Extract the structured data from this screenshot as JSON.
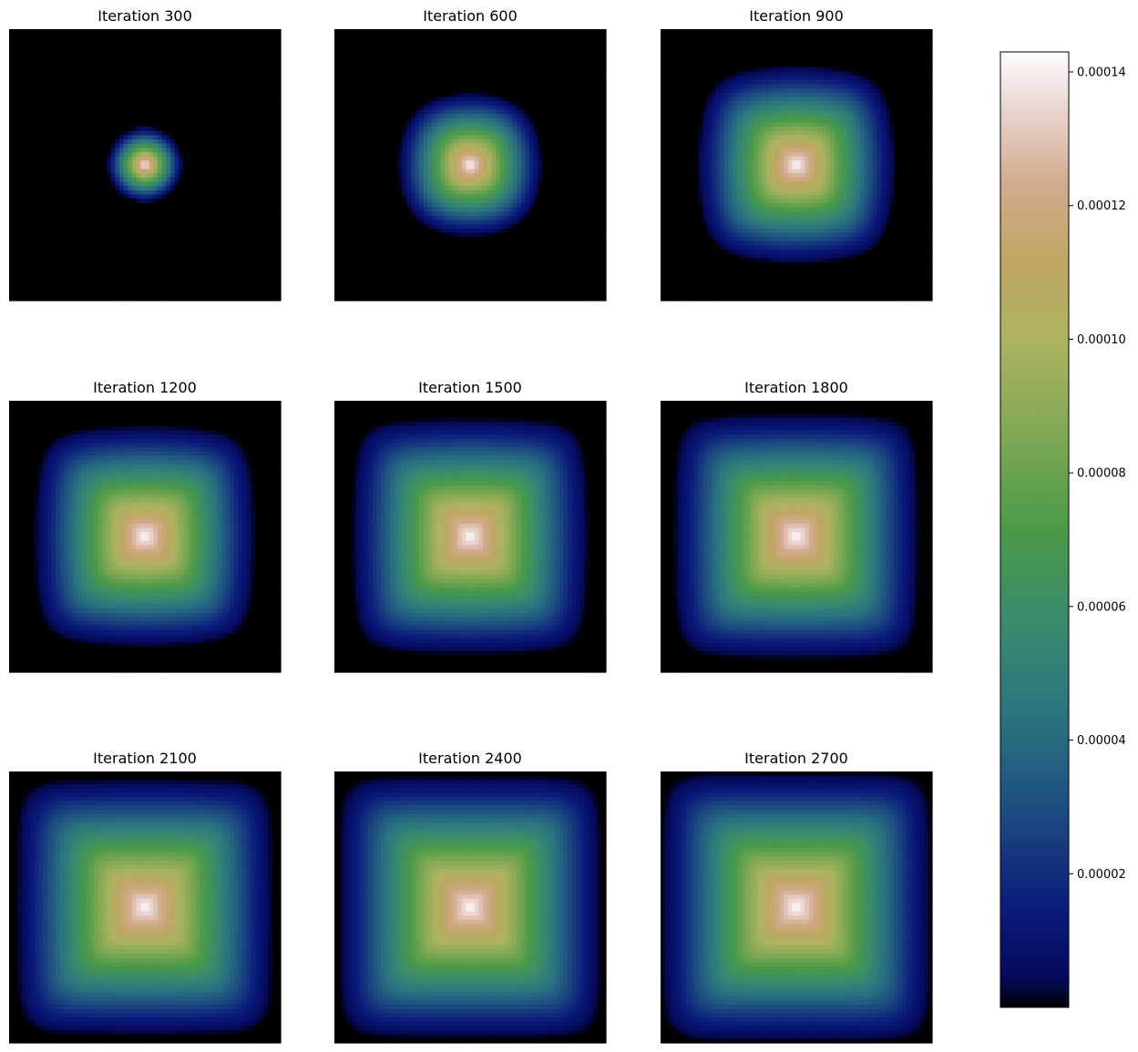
{
  "chart_data": {
    "type": "heatmap",
    "colormap": "gist_earth",
    "grid": "3x3",
    "colorbar": {
      "position": "right",
      "vmin": 0.0,
      "vmax": 0.000143,
      "ticks": [
        "0.00002",
        "0.00004",
        "0.00006",
        "0.00008",
        "0.00010",
        "0.00012",
        "0.00014"
      ],
      "tick_values": [
        2e-05,
        4e-05,
        6e-05,
        8e-05,
        0.0001,
        0.00012,
        0.00014
      ]
    },
    "panels": [
      {
        "title": "Iteration 300",
        "peak": 0.000143,
        "spread": 0.22,
        "squareness": 0.0
      },
      {
        "title": "Iteration 600",
        "peak": 0.000143,
        "spread": 0.4,
        "squareness": 0.35
      },
      {
        "title": "Iteration 900",
        "peak": 0.000143,
        "spread": 0.55,
        "squareness": 0.6
      },
      {
        "title": "Iteration 1200",
        "peak": 0.000143,
        "spread": 0.62,
        "squareness": 0.75
      },
      {
        "title": "Iteration 1500",
        "peak": 0.000143,
        "spread": 0.67,
        "squareness": 0.85
      },
      {
        "title": "Iteration 1800",
        "peak": 0.000143,
        "spread": 0.7,
        "squareness": 0.9
      },
      {
        "title": "Iteration 2100",
        "peak": 0.000143,
        "spread": 0.74,
        "squareness": 0.95
      },
      {
        "title": "Iteration 2400",
        "peak": 0.000143,
        "spread": 0.76,
        "squareness": 1.0
      },
      {
        "title": "Iteration 2700",
        "peak": 0.000143,
        "spread": 0.78,
        "squareness": 1.0
      }
    ]
  }
}
